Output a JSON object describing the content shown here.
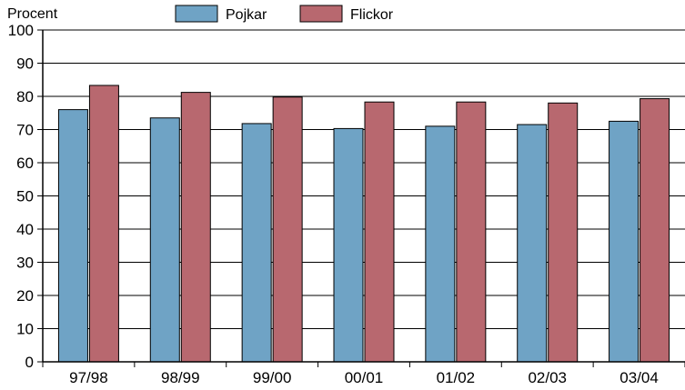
{
  "chart_data": {
    "type": "bar",
    "ylabel": "Procent",
    "ylim": [
      0,
      100
    ],
    "yticks": [
      "0",
      "10",
      "20",
      "30",
      "40",
      "50",
      "60",
      "70",
      "80",
      "90",
      "100"
    ],
    "grid": true,
    "legend_position": "top",
    "categories": [
      "97/98",
      "98/99",
      "99/00",
      "00/01",
      "01/02",
      "02/03",
      "03/04"
    ],
    "series": [
      {
        "name": "Pojkar",
        "color": "#6fa3c5",
        "values": [
          76,
          73.5,
          71.8,
          70.3,
          71,
          71.5,
          72.5
        ]
      },
      {
        "name": "Flickor",
        "color": "#b8686f",
        "values": [
          83.3,
          81.2,
          79.8,
          78.3,
          78.3,
          78,
          79.3
        ]
      }
    ]
  }
}
